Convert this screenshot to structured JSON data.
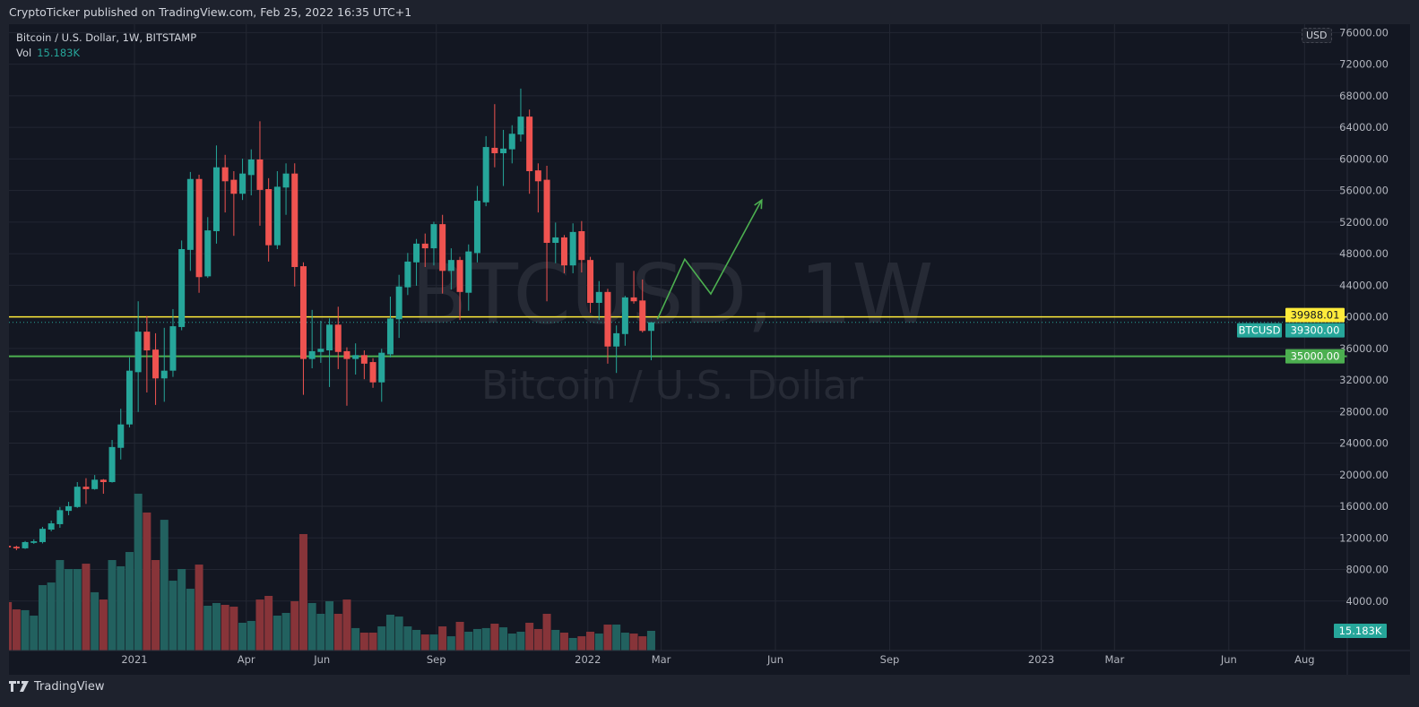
{
  "header": {
    "published": "CryptoTicker published on TradingView.com, Feb 25, 2022 16:35 UTC+1"
  },
  "legend": {
    "symbol_line": "Bitcoin / U.S. Dollar, 1W, BITSTAMP",
    "vol_label": "Vol",
    "vol_value": "15.183K"
  },
  "watermark": {
    "line1": "BTCUSD, 1W",
    "line2": "Bitcoin / U.S. Dollar"
  },
  "currency_badge": "USD",
  "footer": {
    "brand": "TradingView"
  },
  "colors": {
    "up": "#26a69a",
    "down": "#ef5350",
    "vol_up": "#22615f",
    "vol_down": "#873439",
    "resistance": "#ffeb3b",
    "support": "#4caf50",
    "drawing": "#4caf50",
    "background": "#131722",
    "grid": "#232733"
  },
  "chart_data": {
    "type": "candlestick",
    "symbol": "BTCUSD",
    "interval": "1W",
    "exchange": "BITSTAMP",
    "ylim": [
      0,
      78000
    ],
    "y_ticks": [
      4000,
      8000,
      12000,
      16000,
      20000,
      24000,
      28000,
      32000,
      36000,
      40000,
      44000,
      48000,
      52000,
      56000,
      60000,
      64000,
      68000,
      72000,
      76000
    ],
    "x_ticks": [
      {
        "label": "2021",
        "date": "2021-01-01"
      },
      {
        "label": "Apr",
        "date": "2021-04-01"
      },
      {
        "label": "Jun",
        "date": "2021-06-01"
      },
      {
        "label": "Sep",
        "date": "2021-09-01"
      },
      {
        "label": "2022",
        "date": "2022-01-01"
      },
      {
        "label": "Mar",
        "date": "2022-03-01"
      },
      {
        "label": "Jun",
        "date": "2022-06-01"
      },
      {
        "label": "Sep",
        "date": "2022-09-01"
      },
      {
        "label": "2023",
        "date": "2023-01-01"
      },
      {
        "label": "Mar",
        "date": "2023-03-01"
      },
      {
        "label": "Jun",
        "date": "2023-06-01"
      },
      {
        "label": "Aug",
        "date": "2023-08-01"
      }
    ],
    "grid": true,
    "candle_fields": [
      "week",
      "open",
      "high",
      "low",
      "close",
      "volume_k"
    ],
    "candles": [
      [
        "2020-09-21",
        11000,
        11200,
        10600,
        10800,
        37.3
      ],
      [
        "2020-09-28",
        10870,
        11010,
        10440,
        10680,
        31.7
      ],
      [
        "2020-10-05",
        10680,
        11600,
        10600,
        11470,
        31.1
      ],
      [
        "2020-10-12",
        11370,
        11820,
        11240,
        11570,
        26.9
      ],
      [
        "2020-10-19",
        11470,
        13390,
        11300,
        13150,
        50.4
      ],
      [
        "2020-10-26",
        13050,
        14190,
        12830,
        13840,
        52.4
      ],
      [
        "2020-11-02",
        13740,
        15910,
        13280,
        15510,
        69.7
      ],
      [
        "2020-11-09",
        15420,
        16570,
        14870,
        16010,
        62.8
      ],
      [
        "2020-11-16",
        15910,
        19070,
        15800,
        18480,
        62.8
      ],
      [
        "2020-11-23",
        18480,
        19560,
        16300,
        18180,
        66.9
      ],
      [
        "2020-11-30",
        18180,
        19960,
        18100,
        19370,
        44.9
      ],
      [
        "2020-12-07",
        19370,
        19450,
        17590,
        19070,
        39.3
      ],
      [
        "2020-12-14",
        19070,
        24400,
        19000,
        23510,
        69.7
      ],
      [
        "2020-12-21",
        23410,
        28350,
        21930,
        26370,
        64.9
      ],
      [
        "2020-12-28",
        26370,
        34860,
        26000,
        33180,
        75.9
      ],
      [
        "2021-01-04",
        32990,
        41970,
        27950,
        38120,
        120.8
      ],
      [
        "2021-01-11",
        38120,
        40090,
        30420,
        35750,
        106.3
      ],
      [
        "2021-01-18",
        35850,
        37920,
        28840,
        32200,
        69.7
      ],
      [
        "2021-01-25",
        32200,
        38610,
        29240,
        33180,
        100.7
      ],
      [
        "2021-02-01",
        33180,
        40980,
        32390,
        38810,
        53.8
      ],
      [
        "2021-02-08",
        38710,
        49670,
        38300,
        48580,
        62.8
      ],
      [
        "2021-02-15",
        48480,
        58350,
        45820,
        57460,
        47.6
      ],
      [
        "2021-02-22",
        57460,
        58000,
        43050,
        45030,
        66.2
      ],
      [
        "2021-03-01",
        45130,
        52630,
        44930,
        50950,
        34.5
      ],
      [
        "2021-03-08",
        50850,
        61710,
        49270,
        58940,
        36.6
      ],
      [
        "2021-03-15",
        58940,
        60520,
        53220,
        57170,
        35.2
      ],
      [
        "2021-03-22",
        57360,
        58450,
        50260,
        55590,
        33.8
      ],
      [
        "2021-03-29",
        55590,
        60030,
        54800,
        58150,
        21.4
      ],
      [
        "2021-04-05",
        57960,
        61210,
        55390,
        59930,
        22.8
      ],
      [
        "2021-04-12",
        59930,
        64770,
        51540,
        56080,
        39.3
      ],
      [
        "2021-04-19",
        56180,
        57560,
        47000,
        49070,
        42.1
      ],
      [
        "2021-04-26",
        49070,
        58450,
        48580,
        56480,
        26.9
      ],
      [
        "2021-05-03",
        56380,
        59440,
        52920,
        58150,
        29.0
      ],
      [
        "2021-05-10",
        58150,
        59440,
        43840,
        46310,
        38.0
      ],
      [
        "2021-05-17",
        46410,
        46900,
        30120,
        34660,
        89.7
      ],
      [
        "2021-05-24",
        34660,
        40880,
        33480,
        35650,
        36.6
      ],
      [
        "2021-05-31",
        35550,
        39500,
        34170,
        35950,
        28.3
      ],
      [
        "2021-06-07",
        35750,
        39800,
        31110,
        39010,
        38.0
      ],
      [
        "2021-06-14",
        39010,
        41280,
        33380,
        35550,
        28.3
      ],
      [
        "2021-06-21",
        35650,
        36140,
        28740,
        34660,
        39.3
      ],
      [
        "2021-06-28",
        34660,
        36640,
        32690,
        35150,
        17.3
      ],
      [
        "2021-07-05",
        35150,
        35750,
        32100,
        34070,
        13.8
      ],
      [
        "2021-07-12",
        34270,
        34760,
        31010,
        31700,
        13.8
      ],
      [
        "2021-07-19",
        31700,
        35950,
        29240,
        35450,
        18.6
      ],
      [
        "2021-07-26",
        35250,
        42560,
        34860,
        39790,
        27.6
      ],
      [
        "2021-08-02",
        39700,
        45320,
        37330,
        43840,
        26.2
      ],
      [
        "2021-08-09",
        43740,
        48090,
        42760,
        47000,
        18.6
      ],
      [
        "2021-08-16",
        46900,
        49860,
        43940,
        49270,
        15.9
      ],
      [
        "2021-08-23",
        49270,
        50550,
        46310,
        48680,
        12.4
      ],
      [
        "2021-08-30",
        48680,
        52040,
        46510,
        51740,
        12.4
      ],
      [
        "2021-09-06",
        51740,
        52920,
        42950,
        45820,
        18.6
      ],
      [
        "2021-09-13",
        45820,
        48680,
        43450,
        47200,
        11.0
      ],
      [
        "2021-09-20",
        47200,
        47600,
        39600,
        43150,
        22.1
      ],
      [
        "2021-09-27",
        43050,
        49170,
        40780,
        48280,
        14.5
      ],
      [
        "2021-10-04",
        48080,
        56580,
        46900,
        54700,
        16.6
      ],
      [
        "2021-10-11",
        54500,
        62890,
        54010,
        61510,
        17.3
      ],
      [
        "2021-10-18",
        61410,
        66940,
        58940,
        60720,
        20.7
      ],
      [
        "2021-10-25",
        60720,
        63680,
        56570,
        61310,
        17.9
      ],
      [
        "2021-11-01",
        61220,
        64270,
        59440,
        63190,
        13.1
      ],
      [
        "2021-11-08",
        63090,
        68910,
        62200,
        65360,
        14.5
      ],
      [
        "2021-11-15",
        65360,
        66250,
        55590,
        58450,
        21.4
      ],
      [
        "2021-11-22",
        58550,
        59440,
        53220,
        57170,
        16.6
      ],
      [
        "2021-11-29",
        57360,
        59140,
        41970,
        49370,
        28.3
      ],
      [
        "2021-12-06",
        49370,
        51940,
        46800,
        50060,
        15.9
      ],
      [
        "2021-12-13",
        50060,
        50360,
        45520,
        46510,
        13.8
      ],
      [
        "2021-12-20",
        46510,
        51840,
        45520,
        50750,
        9.7
      ],
      [
        "2021-12-27",
        50850,
        52130,
        45620,
        47200,
        11.0
      ],
      [
        "2022-01-03",
        47200,
        47600,
        40490,
        41770,
        14.5
      ],
      [
        "2022-01-10",
        41770,
        44530,
        39600,
        43150,
        13.1
      ],
      [
        "2022-01-17",
        43150,
        43550,
        34070,
        36240,
        20.0
      ],
      [
        "2022-01-24",
        36240,
        38910,
        32890,
        37920,
        20.0
      ],
      [
        "2022-01-31",
        37820,
        42660,
        36340,
        42460,
        13.8
      ],
      [
        "2022-02-07",
        42460,
        45820,
        41670,
        41970,
        13.1
      ],
      [
        "2022-02-14",
        42070,
        44730,
        38020,
        38220,
        11.0
      ],
      [
        "2022-02-21",
        38220,
        39300,
        34500,
        39300,
        15.183
      ]
    ],
    "last_price": {
      "symbol": "BTCUSD",
      "value": "39300.00",
      "price": 39300
    },
    "volume_label": "15.183K",
    "horizontal_lines": [
      {
        "price": 39988.01,
        "label": "39988.01",
        "color": "#ffeb3b",
        "text_color": "#131722"
      },
      {
        "price": 35000,
        "label": "35000.00",
        "color": "#4caf50",
        "text_color": "#ffffff"
      }
    ],
    "drawing_path": [
      {
        "date": "2022-02-26",
        "price": 39700
      },
      {
        "date": "2022-03-20",
        "price": 47300
      },
      {
        "date": "2022-04-10",
        "price": 42900
      },
      {
        "date": "2022-05-21",
        "price": 54800
      }
    ]
  }
}
